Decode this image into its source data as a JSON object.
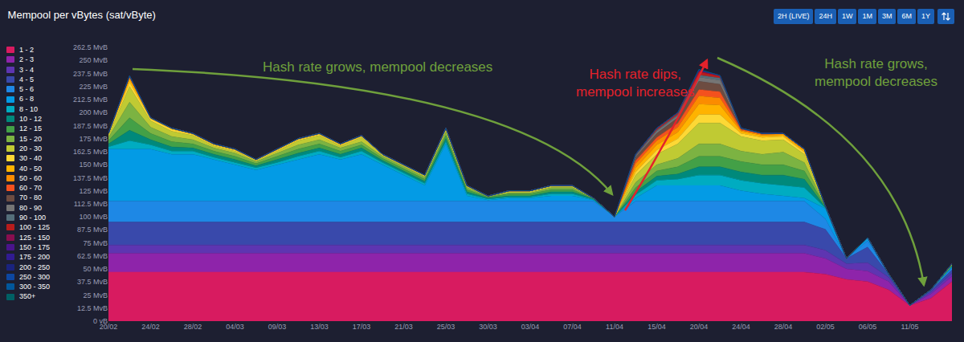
{
  "chart_data": {
    "type": "area",
    "title": "Mempool per vBytes (sat/vByte)",
    "stacked": true,
    "grid": false,
    "legend": "left",
    "buttons": [
      "2H (LIVE)",
      "24H",
      "1W",
      "1M",
      "3M",
      "6M",
      "1Y"
    ],
    "annotations": [
      {
        "text": "Hash rate grows, mempool decreases",
        "color": "#6fa03c"
      },
      {
        "text": "Hash rate dips,\nmempool increases",
        "color": "#e3222b"
      },
      {
        "text": "Hash rate grows,\nmempool decreases",
        "color": "#6fa03c"
      }
    ],
    "categories": [
      "20/02",
      null,
      "24/02",
      null,
      "28/02",
      null,
      "04/03",
      null,
      "09/03",
      null,
      "13/03",
      null,
      "17/03",
      null,
      "21/03",
      null,
      "25/03",
      null,
      "30/03",
      null,
      "03/04",
      null,
      "07/04",
      null,
      "11/04",
      null,
      "15/04",
      null,
      "20/04",
      null,
      "24/04",
      null,
      "28/04",
      null,
      "02/05",
      null,
      "06/05",
      null,
      "11/05",
      null,
      null
    ],
    "ylim": [
      0,
      262.5
    ],
    "yticks": [
      {
        "value": 0,
        "label": "0 vB"
      },
      {
        "value": 12.5,
        "label": "12.5 MvB"
      },
      {
        "value": 25,
        "label": "25 MvB"
      },
      {
        "value": 37.5,
        "label": "37.5 MvB"
      },
      {
        "value": 50,
        "label": "50 MvB"
      },
      {
        "value": 62.5,
        "label": "62.5 MvB"
      },
      {
        "value": 75,
        "label": "75 MvB"
      },
      {
        "value": 87.5,
        "label": "87.5 MvB"
      },
      {
        "value": 100,
        "label": "100 MvB"
      },
      {
        "value": 112.5,
        "label": "112.5 MvB"
      },
      {
        "value": 125,
        "label": "125 MvB"
      },
      {
        "value": 137.5,
        "label": "137.5 MvB"
      },
      {
        "value": 150,
        "label": "150 MvB"
      },
      {
        "value": 162.5,
        "label": "162.5 MvB"
      },
      {
        "value": 175,
        "label": "175 MvB"
      },
      {
        "value": 187.5,
        "label": "187.5 MvB"
      },
      {
        "value": 200,
        "label": "200 MvB"
      },
      {
        "value": 212.5,
        "label": "212.5 MvB"
      },
      {
        "value": 225,
        "label": "225 MvB"
      },
      {
        "value": 237.5,
        "label": "237.5 MvB"
      },
      {
        "value": 250,
        "label": "250 MvB"
      },
      {
        "value": 262.5,
        "label": "262.5 MvB"
      }
    ],
    "series": [
      {
        "name": "1 - 2",
        "color": "#D81B60",
        "values": [
          47,
          47,
          47,
          47,
          47,
          47,
          47,
          47,
          47,
          47,
          47,
          47,
          47,
          47,
          47,
          47,
          47,
          47,
          47,
          47,
          47,
          47,
          47,
          47,
          47,
          47,
          47,
          47,
          47,
          47,
          47,
          47,
          47,
          47,
          45,
          40,
          38,
          30,
          15,
          22,
          38
        ]
      },
      {
        "name": "2 - 3",
        "color": "#8E24AA",
        "values": [
          18,
          18,
          18,
          18,
          18,
          18,
          18,
          18,
          18,
          18,
          18,
          18,
          18,
          18,
          18,
          18,
          18,
          18,
          18,
          18,
          18,
          18,
          18,
          18,
          18,
          18,
          18,
          18,
          18,
          18,
          18,
          18,
          18,
          18,
          15,
          10,
          10,
          8,
          0,
          4,
          5
        ]
      },
      {
        "name": "3 - 4",
        "color": "#5E35B1",
        "values": [
          8,
          8,
          8,
          8,
          8,
          8,
          8,
          8,
          8,
          8,
          8,
          8,
          8,
          8,
          8,
          8,
          8,
          8,
          8,
          8,
          8,
          8,
          8,
          8,
          8,
          8,
          8,
          8,
          8,
          8,
          8,
          8,
          8,
          8,
          8,
          5,
          8,
          4,
          0,
          2,
          3
        ]
      },
      {
        "name": "4 - 5",
        "color": "#3949AB",
        "values": [
          22,
          22,
          22,
          22,
          22,
          22,
          22,
          22,
          22,
          22,
          22,
          22,
          22,
          22,
          22,
          22,
          22,
          22,
          22,
          22,
          22,
          22,
          22,
          22,
          22,
          22,
          22,
          22,
          22,
          22,
          22,
          22,
          22,
          22,
          20,
          5,
          15,
          3,
          0,
          2,
          3
        ]
      },
      {
        "name": "5 - 6",
        "color": "#1E88E5",
        "values": [
          20,
          20,
          20,
          20,
          20,
          20,
          20,
          20,
          20,
          20,
          20,
          20,
          20,
          20,
          20,
          20,
          20,
          20,
          20,
          20,
          20,
          20,
          20,
          20,
          5,
          20,
          20,
          20,
          20,
          20,
          20,
          20,
          20,
          20,
          10,
          0,
          6,
          0,
          0,
          0,
          2
        ]
      },
      {
        "name": "6 - 8",
        "color": "#039BE5",
        "values": [
          50,
          50,
          50,
          45,
          45,
          40,
          35,
          30,
          35,
          40,
          45,
          40,
          45,
          35,
          25,
          15,
          55,
          5,
          1,
          3,
          3,
          5,
          5,
          1,
          0,
          3,
          15,
          15,
          15,
          15,
          10,
          7,
          5,
          3,
          10,
          0,
          3,
          0,
          0,
          0,
          1
        ]
      },
      {
        "name": "8 - 10",
        "color": "#00ACC1",
        "values": [
          2,
          8,
          4,
          3,
          3,
          2,
          2,
          2,
          2,
          3,
          3,
          2,
          3,
          2,
          2,
          2,
          2,
          2,
          1,
          1,
          1,
          2,
          2,
          0.5,
          0,
          3,
          5,
          6,
          10,
          10,
          10,
          10,
          10,
          10,
          0.5,
          0,
          0,
          0,
          0,
          0,
          0.5
        ]
      },
      {
        "name": "10 - 12",
        "color": "#00897B",
        "values": [
          3,
          10,
          5,
          4,
          3,
          3,
          3,
          2,
          3,
          3,
          3,
          3,
          3,
          2,
          2,
          2,
          3,
          2,
          1,
          1,
          1,
          2,
          2,
          0.5,
          0,
          3,
          4,
          5,
          8,
          8,
          8,
          8,
          10,
          8,
          0.5,
          0,
          0,
          0,
          0,
          0,
          0.5
        ]
      },
      {
        "name": "12 - 15",
        "color": "#43A047",
        "values": [
          3,
          12,
          6,
          5,
          4,
          3,
          3,
          2,
          3,
          4,
          4,
          3,
          3,
          2,
          2,
          2,
          3,
          2,
          1,
          2,
          2,
          2,
          2,
          0.5,
          0,
          4,
          5,
          7,
          10,
          10,
          10,
          10,
          10,
          8,
          0.5,
          0,
          0,
          0,
          0,
          0,
          0.5
        ]
      },
      {
        "name": "15 - 20",
        "color": "#7CB342",
        "values": [
          3,
          15,
          6,
          5,
          4,
          3,
          3,
          2,
          3,
          4,
          4,
          3,
          3,
          2,
          2,
          2,
          3,
          2,
          0.5,
          1,
          1,
          2,
          2,
          0.3,
          0,
          5,
          6,
          8,
          12,
          12,
          10,
          10,
          12,
          8,
          0.3,
          0,
          0,
          0,
          0,
          0,
          0.5
        ]
      },
      {
        "name": "20 - 30",
        "color": "#C0CA33",
        "values": [
          2,
          15,
          6,
          5,
          4,
          2,
          2,
          1,
          2,
          4,
          4,
          2,
          4,
          1,
          1,
          1,
          2,
          1,
          0.5,
          1,
          1,
          1,
          1,
          0.2,
          0,
          7,
          10,
          14,
          20,
          20,
          14,
          13,
          12,
          8,
          0.2,
          0,
          0,
          0,
          0,
          0,
          0.5
        ]
      },
      {
        "name": "30 - 40",
        "color": "#FDD835",
        "values": [
          1,
          4,
          2,
          2,
          1,
          1,
          1,
          0.5,
          1,
          1,
          1,
          1,
          1,
          0.5,
          0.5,
          0.5,
          1,
          0.5,
          0,
          0.5,
          0.5,
          0.5,
          0.5,
          0,
          0,
          3,
          4,
          5,
          8,
          8,
          3,
          3,
          3,
          2,
          0,
          0,
          0,
          0,
          0,
          0,
          0.3
        ]
      },
      {
        "name": "40 - 50",
        "color": "#FFB300",
        "values": [
          0.5,
          3,
          1,
          1,
          1,
          0.5,
          0.5,
          0.5,
          0.5,
          1,
          1,
          0.5,
          1,
          0.5,
          0.5,
          0.5,
          0.5,
          0.5,
          0,
          0.5,
          0.5,
          0.5,
          0.5,
          0,
          0,
          4,
          5,
          6,
          10,
          9,
          2,
          2,
          1.5,
          1.5,
          0,
          0,
          0,
          0,
          0,
          0,
          0.2
        ]
      },
      {
        "name": "50 - 60",
        "color": "#FB8C00",
        "values": [
          0.5,
          1.5,
          0,
          0,
          0,
          0.5,
          0.5,
          0,
          0.5,
          0,
          0,
          0.5,
          0,
          0,
          0,
          0,
          0.5,
          0,
          0,
          0,
          0,
          0,
          0,
          0,
          0,
          4,
          4,
          5,
          8,
          7,
          1,
          1,
          1,
          1,
          0,
          0,
          0,
          0,
          0,
          0,
          0
        ]
      },
      {
        "name": "60 - 70",
        "color": "#F4511E",
        "values": [
          0,
          0.8,
          0,
          0,
          0,
          0,
          0,
          0,
          0,
          0,
          0,
          0,
          0,
          0,
          0,
          0,
          0,
          0,
          0,
          0,
          0,
          0,
          0,
          0,
          0,
          3,
          3,
          4,
          6,
          6,
          1,
          0.5,
          0.5,
          0.5,
          0,
          0,
          0,
          0,
          0,
          0,
          0
        ]
      },
      {
        "name": "70 - 80",
        "color": "#6D4C41",
        "values": [
          0,
          0.4,
          0,
          0,
          0,
          0,
          0,
          0,
          0,
          0,
          0,
          0,
          0,
          0,
          0,
          0,
          0,
          0,
          0,
          0,
          0,
          0,
          0,
          0,
          0,
          3,
          4,
          5,
          8,
          7,
          0.5,
          0.3,
          0,
          0,
          0,
          0,
          0,
          0,
          0,
          0,
          0
        ]
      },
      {
        "name": "80 - 90",
        "color": "#757575",
        "values": [
          0,
          0.2,
          0,
          0,
          0,
          0,
          0,
          0,
          0,
          0,
          0,
          0,
          0,
          0,
          0,
          0,
          0,
          0,
          0,
          0,
          0,
          0,
          0,
          0,
          0,
          1,
          2,
          2,
          4,
          4,
          0.3,
          0.2,
          0,
          0,
          0,
          0,
          0,
          0,
          0,
          0,
          0
        ]
      },
      {
        "name": "90 - 100",
        "color": "#546E7A",
        "values": [
          0,
          0.1,
          0,
          0,
          0,
          0,
          0,
          0,
          0,
          0,
          0,
          0,
          0,
          0,
          0,
          0,
          0,
          0,
          0,
          0,
          0,
          0,
          0,
          0,
          0,
          1,
          1,
          1,
          2,
          2,
          0.2,
          0,
          0,
          0,
          0,
          0,
          0,
          0,
          0,
          0,
          0
        ]
      },
      {
        "name": "100 - 125",
        "color": "#B71C1C",
        "values": [
          0,
          0,
          0,
          0,
          0,
          0,
          0,
          0,
          0,
          0,
          0,
          0,
          0,
          0,
          0,
          0,
          0,
          0,
          0,
          0,
          0,
          0,
          0,
          0,
          0,
          1,
          2,
          2,
          3,
          2,
          0,
          0,
          0,
          0,
          0,
          0,
          0,
          0,
          0,
          0,
          0
        ]
      },
      {
        "name": "125 - 150",
        "color": "#880E4F",
        "values": [
          0,
          0,
          0,
          0,
          0,
          0,
          0,
          0,
          0,
          0,
          0,
          0,
          0,
          0,
          0,
          0,
          0,
          0,
          0,
          0,
          0,
          0,
          0,
          0,
          0,
          0,
          0,
          0,
          1,
          0.5,
          0,
          0,
          0,
          0,
          0,
          0,
          0,
          0,
          0,
          0,
          0
        ]
      },
      {
        "name": "150 - 175",
        "color": "#4A148C",
        "values": [
          0,
          0,
          0,
          0,
          0,
          0,
          0,
          0,
          0,
          0,
          0,
          0,
          0,
          0,
          0,
          0,
          0,
          0,
          0,
          0,
          0,
          0,
          0,
          0,
          0,
          0,
          0,
          0,
          0.5,
          0,
          0,
          0,
          0,
          0,
          0,
          0,
          0,
          0,
          0,
          0,
          0
        ]
      },
      {
        "name": "175 - 200",
        "color": "#311B92",
        "values": [
          0,
          0,
          0,
          0,
          0,
          0,
          0,
          0,
          0,
          0,
          0,
          0,
          0,
          0,
          0,
          0,
          0,
          0,
          0,
          0,
          0,
          0,
          0,
          0,
          0,
          0,
          0,
          0,
          0.3,
          0,
          0,
          0,
          0,
          0,
          0,
          0,
          0,
          0,
          0,
          0,
          0
        ]
      },
      {
        "name": "200 - 250",
        "color": "#1A237E",
        "values": [
          0,
          0.2,
          0,
          0,
          0,
          0,
          0,
          0,
          0,
          0,
          0,
          0,
          0,
          0,
          0,
          0,
          0,
          0,
          0,
          0,
          0,
          0,
          0,
          0,
          0,
          0,
          0,
          0,
          0.2,
          0,
          0,
          0,
          0,
          0,
          0,
          0,
          0,
          0,
          0,
          0,
          0
        ]
      },
      {
        "name": "250 - 300",
        "color": "#0D47A1",
        "values": [
          0,
          0,
          0,
          0,
          0,
          0,
          0,
          0,
          0,
          0,
          0,
          0,
          0,
          0,
          0,
          0,
          0,
          0,
          0,
          0,
          0,
          0,
          0,
          0,
          0,
          0,
          0,
          0,
          0.2,
          0,
          0,
          0,
          0,
          0,
          0,
          0,
          0,
          0,
          0,
          0,
          0
        ]
      },
      {
        "name": "300 - 350",
        "color": "#01579B",
        "values": [
          0,
          0,
          0,
          0,
          0,
          0,
          0,
          0,
          0,
          0,
          0,
          0,
          0,
          0,
          0,
          0,
          0,
          0,
          0,
          0,
          0,
          0,
          0,
          0,
          0,
          0,
          0,
          0,
          0.1,
          0,
          0,
          0,
          0,
          0,
          0,
          0,
          0,
          0,
          0,
          0,
          0
        ]
      },
      {
        "name": "350+",
        "color": "#006064",
        "values": [
          0,
          0,
          0,
          0,
          0,
          0,
          0,
          0,
          0,
          0,
          0,
          0,
          0,
          0,
          0,
          0,
          0,
          0,
          0,
          0,
          0,
          0,
          0,
          0,
          0,
          0,
          0,
          0,
          0.1,
          0,
          0,
          0,
          0,
          0,
          0,
          0,
          0,
          0,
          0,
          0,
          0
        ]
      }
    ]
  }
}
